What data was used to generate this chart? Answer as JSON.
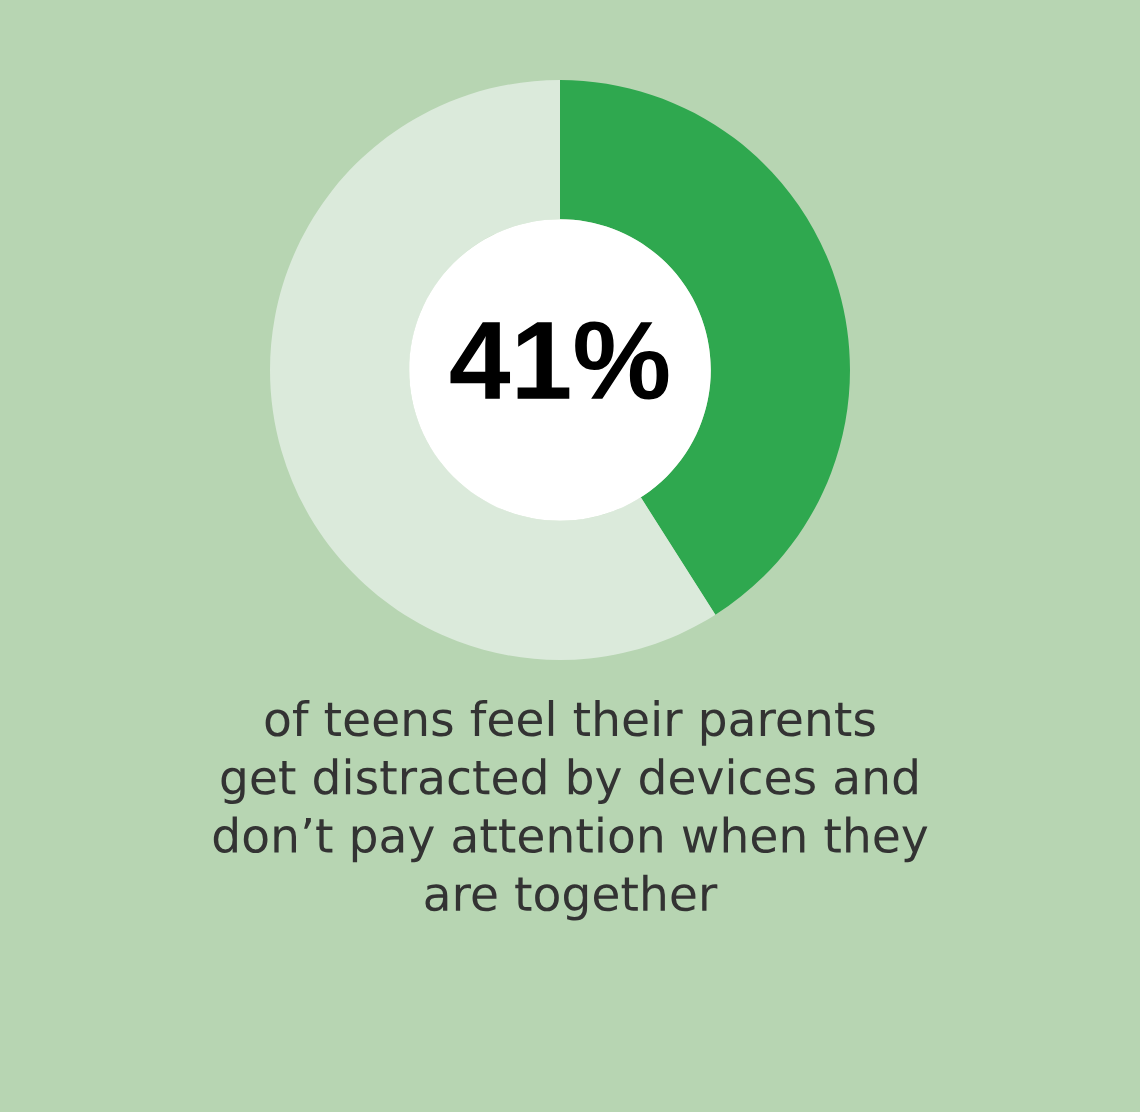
{
  "chart_data": {
    "type": "donut",
    "categories": [
      null,
      null
    ],
    "values": [
      41,
      59
    ],
    "colors": [
      "#2fa84f",
      "#dbeadb"
    ],
    "value_labels": [
      "41%",
      null
    ],
    "annotations": [
      "of teens feel their parents\nget distracted by devices and\ndon’t pay attention when they\nare together"
    ]
  }
}
